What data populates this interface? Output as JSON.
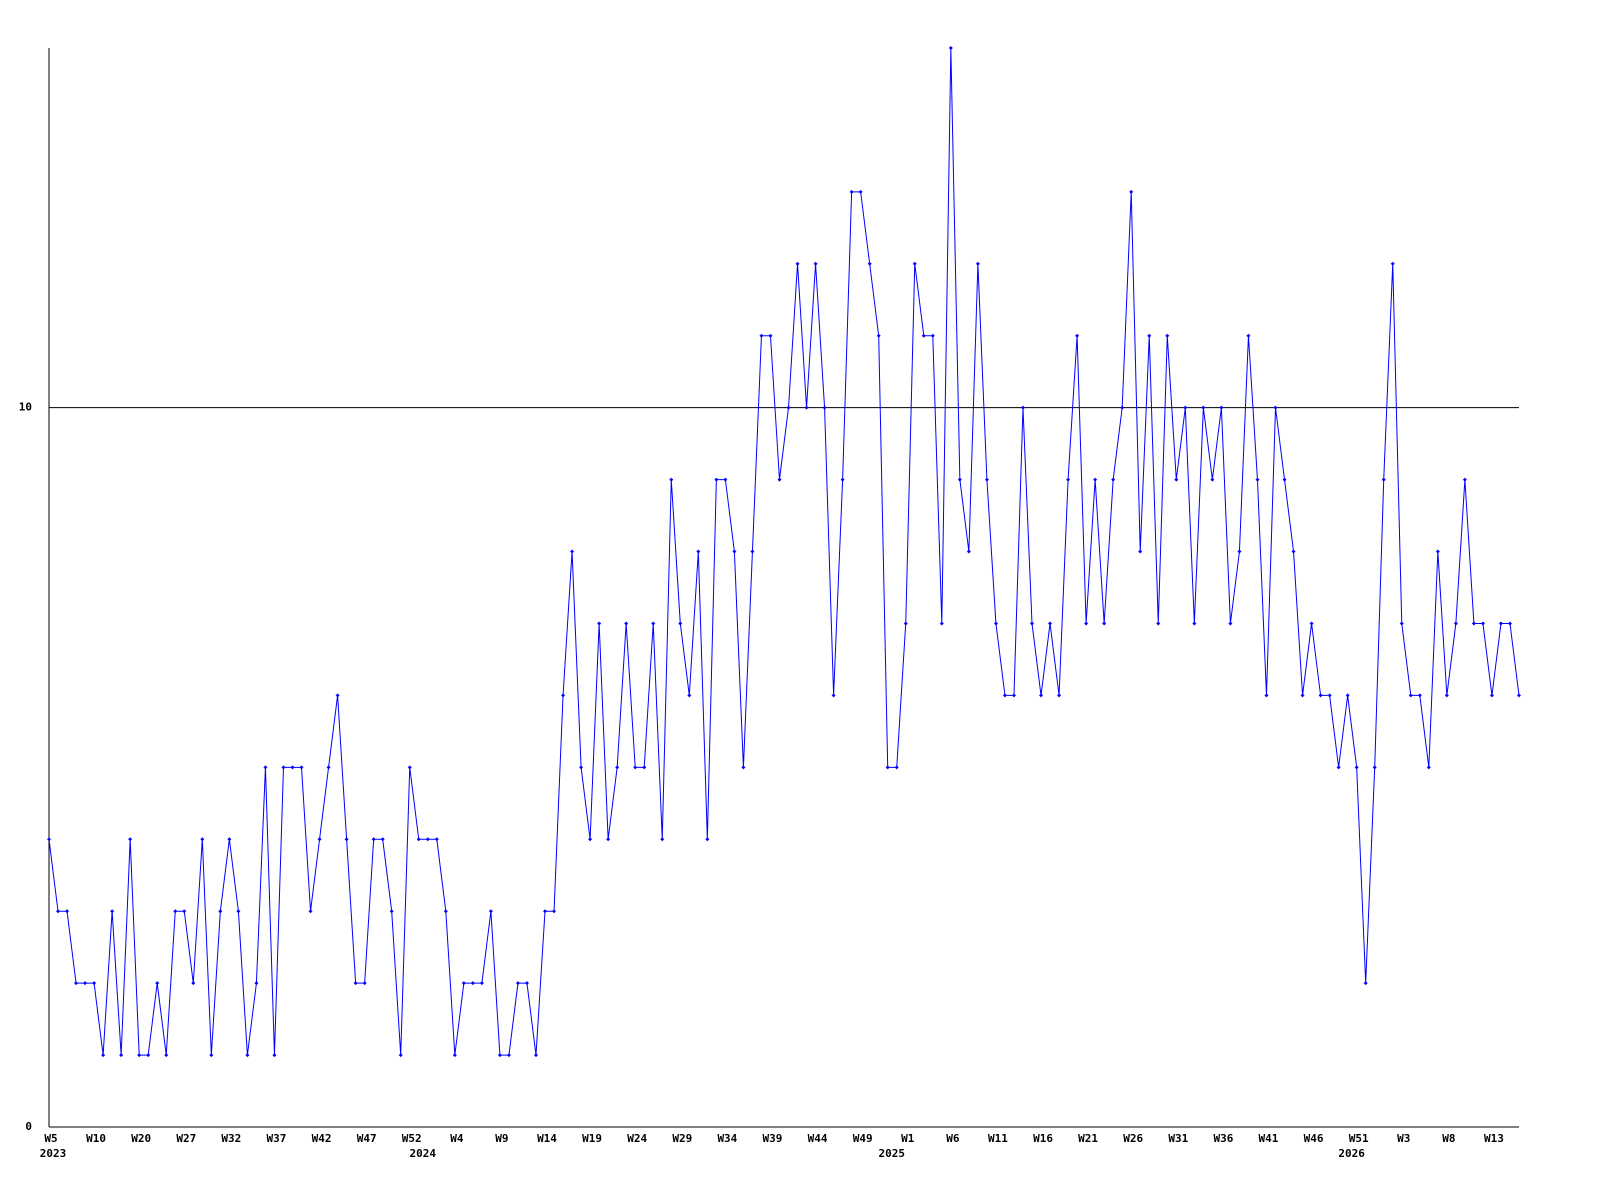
{
  "chart_data": {
    "type": "line",
    "categories": [
      "W5",
      null,
      null,
      null,
      null,
      "W10",
      null,
      null,
      null,
      null,
      "W20",
      null,
      null,
      null,
      null,
      "W27",
      null,
      null,
      null,
      null,
      "W32",
      null,
      null,
      null,
      null,
      "W37",
      null,
      null,
      null,
      null,
      "W42",
      null,
      null,
      null,
      null,
      "W47",
      null,
      null,
      null,
      null,
      "W52",
      null,
      null,
      null,
      null,
      "W4",
      null,
      null,
      null,
      null,
      "W9",
      null,
      null,
      null,
      null,
      "W14",
      null,
      null,
      null,
      null,
      "W19",
      null,
      null,
      null,
      null,
      "W24",
      null,
      null,
      null,
      null,
      "W29",
      null,
      null,
      null,
      null,
      "W34",
      null,
      null,
      null,
      null,
      "W39",
      null,
      null,
      null,
      null,
      "W44",
      null,
      null,
      null,
      null,
      "W49",
      null,
      null,
      null,
      null,
      "W1",
      null,
      null,
      null,
      null,
      "W6",
      null,
      null,
      null,
      null,
      "W11",
      null,
      null,
      null,
      null,
      "W16",
      null,
      null,
      null,
      null,
      "W21",
      null,
      null,
      null,
      null,
      "W26",
      null,
      null,
      null,
      null,
      "W31",
      null,
      null,
      null,
      null,
      "W36",
      null,
      null,
      null,
      null,
      "W41",
      null,
      null,
      null,
      null,
      "W46",
      null,
      null,
      null,
      null,
      "W51",
      null,
      null,
      null,
      null,
      "W3",
      null,
      null,
      null,
      null,
      "W8",
      null,
      null,
      null,
      null,
      "W13",
      null,
      null,
      null
    ],
    "years": [
      "2023",
      null,
      null,
      null,
      null,
      null,
      null,
      null,
      null,
      null,
      null,
      null,
      null,
      null,
      null,
      null,
      null,
      null,
      null,
      null,
      null,
      null,
      null,
      null,
      null,
      null,
      null,
      null,
      null,
      null,
      null,
      null,
      null,
      null,
      null,
      null,
      null,
      null,
      null,
      null,
      null,
      "2024",
      null,
      null,
      null,
      null,
      null,
      null,
      null,
      null,
      null,
      null,
      null,
      null,
      null,
      null,
      null,
      null,
      null,
      null,
      null,
      null,
      null,
      null,
      null,
      null,
      null,
      null,
      null,
      null,
      null,
      null,
      null,
      null,
      null,
      null,
      null,
      null,
      null,
      null,
      null,
      null,
      null,
      null,
      null,
      null,
      null,
      null,
      null,
      null,
      null,
      null,
      null,
      "2025",
      null,
      null,
      null,
      null,
      null,
      null,
      null,
      null,
      null,
      null,
      null,
      null,
      null,
      null,
      null,
      null,
      null,
      null,
      null,
      null,
      null,
      null,
      null,
      null,
      null,
      null,
      null,
      null,
      null,
      null,
      null,
      null,
      null,
      null,
      null,
      null,
      null,
      null,
      null,
      null,
      null,
      null,
      null,
      null,
      null,
      null,
      null,
      null,
      null,
      null,
      "2026",
      null,
      null,
      null,
      null,
      null,
      null,
      null,
      null,
      null,
      null,
      null,
      null,
      null,
      null,
      null,
      null
    ],
    "values": [
      4,
      3,
      3,
      2,
      2,
      2,
      1,
      3,
      1,
      4,
      1,
      1,
      2,
      1,
      3,
      3,
      2,
      4,
      1,
      3,
      4,
      3,
      1,
      2,
      5,
      1,
      5,
      5,
      5,
      3,
      4,
      5,
      6,
      4,
      2,
      2,
      4,
      4,
      3,
      1,
      5,
      4,
      4,
      4,
      3,
      1,
      2,
      2,
      2,
      3,
      1,
      1,
      2,
      2,
      1,
      3,
      3,
      6,
      8,
      5,
      4,
      7,
      4,
      5,
      7,
      5,
      5,
      7,
      4,
      9,
      7,
      6,
      8,
      4,
      9,
      9,
      8,
      5,
      8,
      11,
      11,
      9,
      10,
      12,
      10,
      12,
      10,
      6,
      9,
      13,
      13,
      12,
      11,
      5,
      5,
      7,
      12,
      11,
      11,
      7,
      15,
      9,
      8,
      12,
      9,
      7,
      6,
      6,
      10,
      7,
      6,
      7,
      6,
      9,
      11,
      7,
      9,
      7,
      9,
      10,
      13,
      8,
      11,
      7,
      11,
      9,
      10,
      7,
      10,
      9,
      10,
      7,
      8,
      11,
      9,
      6,
      10,
      9,
      8,
      6,
      7,
      6,
      6,
      5,
      6,
      5,
      2,
      5,
      9,
      12,
      7,
      6,
      6,
      5,
      8,
      6,
      7,
      9,
      7,
      7,
      6,
      7,
      7,
      6
    ],
    "color": "#0000ff",
    "ylim": [
      0,
      15
    ],
    "yticks": [
      0,
      10
    ],
    "grid": true
  }
}
